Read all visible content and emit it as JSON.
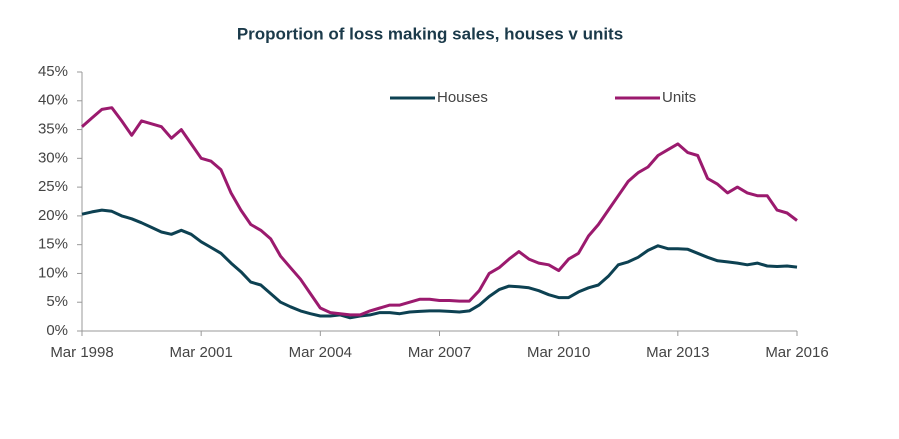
{
  "chart_data": {
    "type": "line",
    "title": "Proportion of loss making sales, houses v units",
    "categories": [
      "Mar 1998",
      null,
      null,
      null,
      null,
      null,
      null,
      null,
      null,
      null,
      null,
      null,
      "Mar 2001",
      null,
      null,
      null,
      null,
      null,
      null,
      null,
      null,
      null,
      null,
      null,
      "Mar 2004",
      null,
      null,
      null,
      null,
      null,
      null,
      null,
      null,
      null,
      null,
      null,
      "Mar 2007",
      null,
      null,
      null,
      null,
      null,
      null,
      null,
      null,
      null,
      null,
      null,
      "Mar 2010",
      null,
      null,
      null,
      null,
      null,
      null,
      null,
      null,
      null,
      null,
      null,
      "Mar 2013",
      null,
      null,
      null,
      null,
      null,
      null,
      null,
      null,
      null,
      null,
      null,
      "Mar 2016"
    ],
    "series": [
      {
        "name": "Houses",
        "color": "#0d4152",
        "values": [
          20.3,
          20.7,
          21,
          20.8,
          20,
          19.5,
          18.8,
          18,
          17.2,
          16.8,
          17.5,
          16.8,
          15.5,
          14.5,
          13.5,
          11.8,
          10.3,
          8.5,
          8,
          6.5,
          5,
          4.2,
          3.5,
          3,
          2.6,
          2.6,
          2.8,
          2.3,
          2.6,
          2.8,
          3.2,
          3.2,
          3,
          3.3,
          3.4,
          3.5,
          3.5,
          3.4,
          3.3,
          3.5,
          4.5,
          6,
          7.2,
          7.8,
          7.7,
          7.5,
          7,
          6.3,
          5.8,
          5.8,
          6.8,
          7.5,
          8,
          9.5,
          11.5,
          12,
          12.8,
          14,
          14.8,
          14.3,
          14.3,
          14.2,
          13.5,
          12.8,
          12.2,
          12,
          11.8,
          11.5,
          11.8,
          11.3,
          11.2,
          11.3,
          11.1
        ]
      },
      {
        "name": "Units",
        "color": "#9b1a6e",
        "values": [
          35.5,
          37,
          38.5,
          38.8,
          36.5,
          34,
          36.5,
          36,
          35.5,
          33.5,
          35,
          32.5,
          30,
          29.5,
          28,
          24,
          21,
          18.5,
          17.5,
          16,
          13,
          11,
          9,
          6.5,
          4,
          3.2,
          3,
          2.8,
          2.8,
          3.5,
          4,
          4.5,
          4.5,
          5,
          5.5,
          5.5,
          5.3,
          5.3,
          5.2,
          5.2,
          7,
          10,
          11,
          12.5,
          13.8,
          12.5,
          11.8,
          11.5,
          10.5,
          12.5,
          13.5,
          16.5,
          18.5,
          21,
          23.5,
          26,
          27.5,
          28.5,
          30.5,
          31.5,
          32.5,
          31,
          30.5,
          26.5,
          25.5,
          24,
          25,
          24,
          23.5,
          23.5,
          21,
          20.5,
          19.2
        ]
      }
    ],
    "ylim": [
      0,
      45
    ],
    "yticks": [
      {
        "value": 0,
        "label": "0%"
      },
      {
        "value": 5,
        "label": "5%"
      },
      {
        "value": 10,
        "label": "10%"
      },
      {
        "value": 15,
        "label": "15%"
      },
      {
        "value": 20,
        "label": "20%"
      },
      {
        "value": 25,
        "label": "25%"
      },
      {
        "value": 30,
        "label": "30%"
      },
      {
        "value": 35,
        "label": "35%"
      },
      {
        "value": 40,
        "label": "40%"
      },
      {
        "value": 45,
        "label": "45%"
      }
    ],
    "grid": false,
    "legend": "top"
  }
}
